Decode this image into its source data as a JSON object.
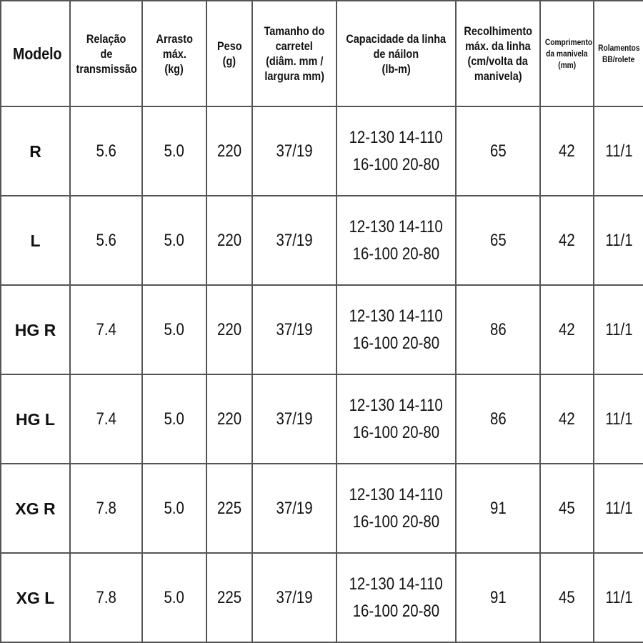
{
  "table": {
    "header": [
      [
        "Modelo"
      ],
      [
        "Relação",
        "de",
        "transmissão"
      ],
      [
        "Arrasto",
        "máx.",
        "(kg)"
      ],
      [
        "Peso",
        "(g)"
      ],
      [
        "Tamanho do",
        "carretel",
        "(diâm. mm /",
        "largura mm)"
      ],
      [
        "Capacidade da linha",
        "de náilon",
        "(lb-m)"
      ],
      [
        "Recolhimento",
        "máx. da linha",
        "(cm/volta da",
        "manivela)"
      ],
      [
        "Comprimento",
        "da manivela",
        "(mm)"
      ],
      [
        "Rolamentos",
        "BB/rolete"
      ]
    ],
    "rows": [
      [
        [
          "R"
        ],
        [
          "5.6"
        ],
        [
          "5.0"
        ],
        [
          "220"
        ],
        [
          "37/19"
        ],
        [
          "12-130  14-110",
          "16-100  20-80"
        ],
        [
          "65"
        ],
        [
          "42"
        ],
        [
          "11/1"
        ]
      ],
      [
        [
          "L"
        ],
        [
          "5.6"
        ],
        [
          "5.0"
        ],
        [
          "220"
        ],
        [
          "37/19"
        ],
        [
          "12-130  14-110",
          "16-100  20-80"
        ],
        [
          "65"
        ],
        [
          "42"
        ],
        [
          "11/1"
        ]
      ],
      [
        [
          "HG R"
        ],
        [
          "7.4"
        ],
        [
          "5.0"
        ],
        [
          "220"
        ],
        [
          "37/19"
        ],
        [
          "12-130  14-110",
          "16-100  20-80"
        ],
        [
          "86"
        ],
        [
          "42"
        ],
        [
          "11/1"
        ]
      ],
      [
        [
          "HG L"
        ],
        [
          "7.4"
        ],
        [
          "5.0"
        ],
        [
          "220"
        ],
        [
          "37/19"
        ],
        [
          "12-130  14-110",
          "16-100  20-80"
        ],
        [
          "86"
        ],
        [
          "42"
        ],
        [
          "11/1"
        ]
      ],
      [
        [
          "XG R"
        ],
        [
          "7.8"
        ],
        [
          "5.0"
        ],
        [
          "225"
        ],
        [
          "37/19"
        ],
        [
          "12-130  14-110",
          "16-100  20-80"
        ],
        [
          "91"
        ],
        [
          "45"
        ],
        [
          "11/1"
        ]
      ],
      [
        [
          "XG L"
        ],
        [
          "7.8"
        ],
        [
          "5.0"
        ],
        [
          "225"
        ],
        [
          "37/19"
        ],
        [
          "12-130  14-110",
          "16-100  20-80"
        ],
        [
          "91"
        ],
        [
          "45"
        ],
        [
          "11/1"
        ]
      ]
    ]
  }
}
